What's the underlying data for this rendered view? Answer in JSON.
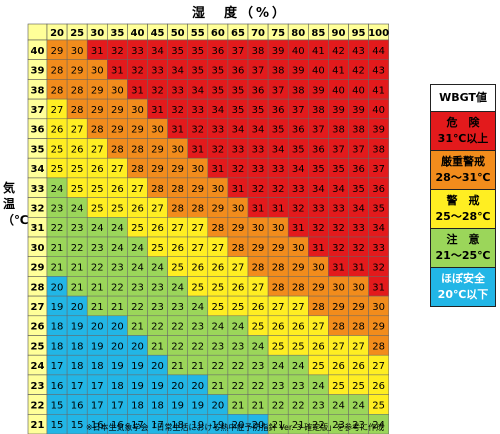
{
  "chart_data": {
    "type": "heatmap",
    "xlabel": "湿　度（%）",
    "ylabel": "気温（℃）",
    "x": [
      20,
      25,
      30,
      35,
      40,
      45,
      50,
      55,
      60,
      65,
      70,
      75,
      80,
      85,
      90,
      95,
      100
    ],
    "y": [
      40,
      39,
      38,
      37,
      36,
      35,
      34,
      33,
      32,
      31,
      30,
      29,
      28,
      27,
      26,
      25,
      24,
      23,
      22,
      21
    ],
    "values": [
      [
        29,
        30,
        31,
        32,
        33,
        34,
        35,
        35,
        36,
        37,
        38,
        39,
        40,
        41,
        42,
        43,
        44
      ],
      [
        28,
        29,
        30,
        31,
        32,
        33,
        34,
        35,
        35,
        36,
        37,
        38,
        39,
        40,
        41,
        42,
        43
      ],
      [
        28,
        28,
        29,
        30,
        31,
        32,
        33,
        34,
        35,
        35,
        36,
        37,
        38,
        39,
        40,
        40,
        41
      ],
      [
        27,
        28,
        29,
        29,
        30,
        31,
        32,
        33,
        34,
        35,
        35,
        36,
        37,
        38,
        39,
        39,
        40
      ],
      [
        26,
        27,
        28,
        29,
        29,
        30,
        31,
        32,
        33,
        34,
        34,
        35,
        36,
        37,
        38,
        38,
        39
      ],
      [
        25,
        26,
        27,
        28,
        28,
        29,
        30,
        31,
        32,
        33,
        33,
        34,
        35,
        36,
        37,
        37,
        38
      ],
      [
        25,
        25,
        26,
        27,
        28,
        29,
        29,
        30,
        31,
        32,
        33,
        33,
        34,
        35,
        35,
        36,
        37
      ],
      [
        24,
        25,
        25,
        26,
        27,
        28,
        28,
        29,
        30,
        31,
        32,
        32,
        33,
        34,
        34,
        35,
        36
      ],
      [
        23,
        24,
        25,
        25,
        26,
        27,
        28,
        28,
        29,
        30,
        31,
        31,
        32,
        33,
        33,
        34,
        35
      ],
      [
        22,
        23,
        24,
        24,
        25,
        26,
        27,
        27,
        28,
        29,
        30,
        30,
        31,
        32,
        32,
        33,
        34
      ],
      [
        21,
        22,
        23,
        24,
        24,
        25,
        26,
        27,
        27,
        28,
        29,
        29,
        30,
        31,
        32,
        32,
        33
      ],
      [
        21,
        21,
        22,
        23,
        24,
        24,
        25,
        26,
        26,
        27,
        28,
        28,
        29,
        30,
        31,
        31,
        32
      ],
      [
        20,
        21,
        21,
        22,
        23,
        23,
        24,
        25,
        25,
        26,
        27,
        28,
        28,
        29,
        30,
        30,
        31
      ],
      [
        19,
        20,
        21,
        21,
        22,
        23,
        23,
        24,
        25,
        25,
        26,
        27,
        27,
        28,
        29,
        29,
        30
      ],
      [
        18,
        19,
        20,
        20,
        21,
        22,
        22,
        23,
        24,
        24,
        25,
        26,
        26,
        27,
        28,
        28,
        29
      ],
      [
        18,
        18,
        19,
        20,
        20,
        21,
        22,
        22,
        23,
        23,
        24,
        25,
        25,
        26,
        27,
        27,
        28
      ],
      [
        17,
        18,
        18,
        19,
        19,
        20,
        21,
        21,
        22,
        22,
        23,
        24,
        24,
        25,
        26,
        26,
        27
      ],
      [
        16,
        17,
        17,
        18,
        19,
        19,
        20,
        20,
        21,
        22,
        22,
        23,
        23,
        24,
        25,
        25,
        26
      ],
      [
        15,
        16,
        17,
        17,
        18,
        18,
        19,
        19,
        20,
        21,
        21,
        22,
        22,
        23,
        24,
        24,
        25
      ],
      [
        15,
        15,
        16,
        16,
        17,
        17,
        18,
        19,
        19,
        20,
        20,
        21,
        21,
        22,
        23,
        23,
        24
      ]
    ],
    "grid": true,
    "legend_position": "right",
    "legend_title": "WBGT値",
    "legend": [
      {
        "line1": "危　険",
        "line2": "31℃以上",
        "color": "#e31a1c",
        "min": 31,
        "max": 99
      },
      {
        "line1": "厳重警戒",
        "line2": "28～31℃",
        "color": "#f28c1c",
        "min": 28,
        "max": 30
      },
      {
        "line1": "警　戒",
        "line2": "25～28℃",
        "color": "#ffee22",
        "min": 25,
        "max": 27
      },
      {
        "line1": "注　意",
        "line2": "21～25℃",
        "color": "#9bd65a",
        "min": 21,
        "max": 24
      },
      {
        "line1": "ほぼ安全",
        "line2": "20℃以下",
        "color": "#22b6e6",
        "min": 0,
        "max": 20
      }
    ],
    "header_color": "#ffff99",
    "footnote": "※日本生気象学会「日常生活における熱中症予防指針 Ver. 3 確定版」を参考に作成"
  }
}
